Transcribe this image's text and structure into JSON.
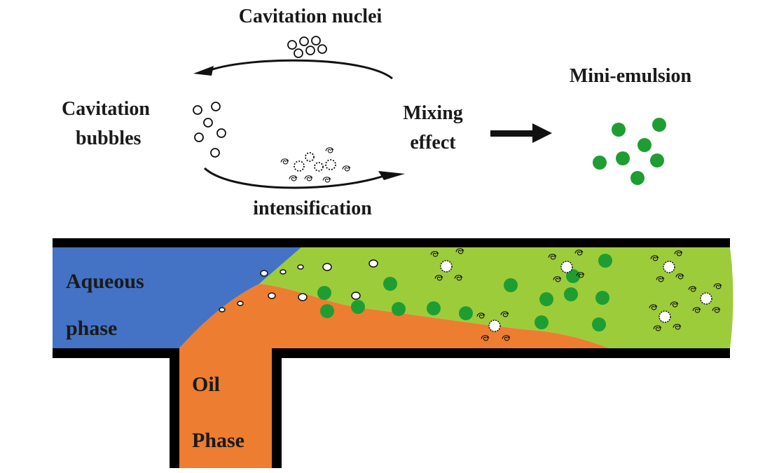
{
  "labels": {
    "cavitation_nuclei": "Cavitation nuclei",
    "cavitation_bubbles_line1": "Cavitation",
    "cavitation_bubbles_line2": "bubbles",
    "mixing_effect_line1": "Mixing",
    "mixing_effect_line2": "effect",
    "intensification": "intensification",
    "mini_emulsion": "Mini-emulsion",
    "aqueous_phase_line1": "Aqueous",
    "aqueous_phase_line2": "phase",
    "oil_phase_line1": "Oil",
    "oil_phase_line2": "Phase"
  },
  "colors": {
    "aqueous": "#4472c4",
    "oil": "#ed7d31",
    "emulsion": "#9dcc3b",
    "droplet": "#1e9e32",
    "wall": "#000000"
  }
}
